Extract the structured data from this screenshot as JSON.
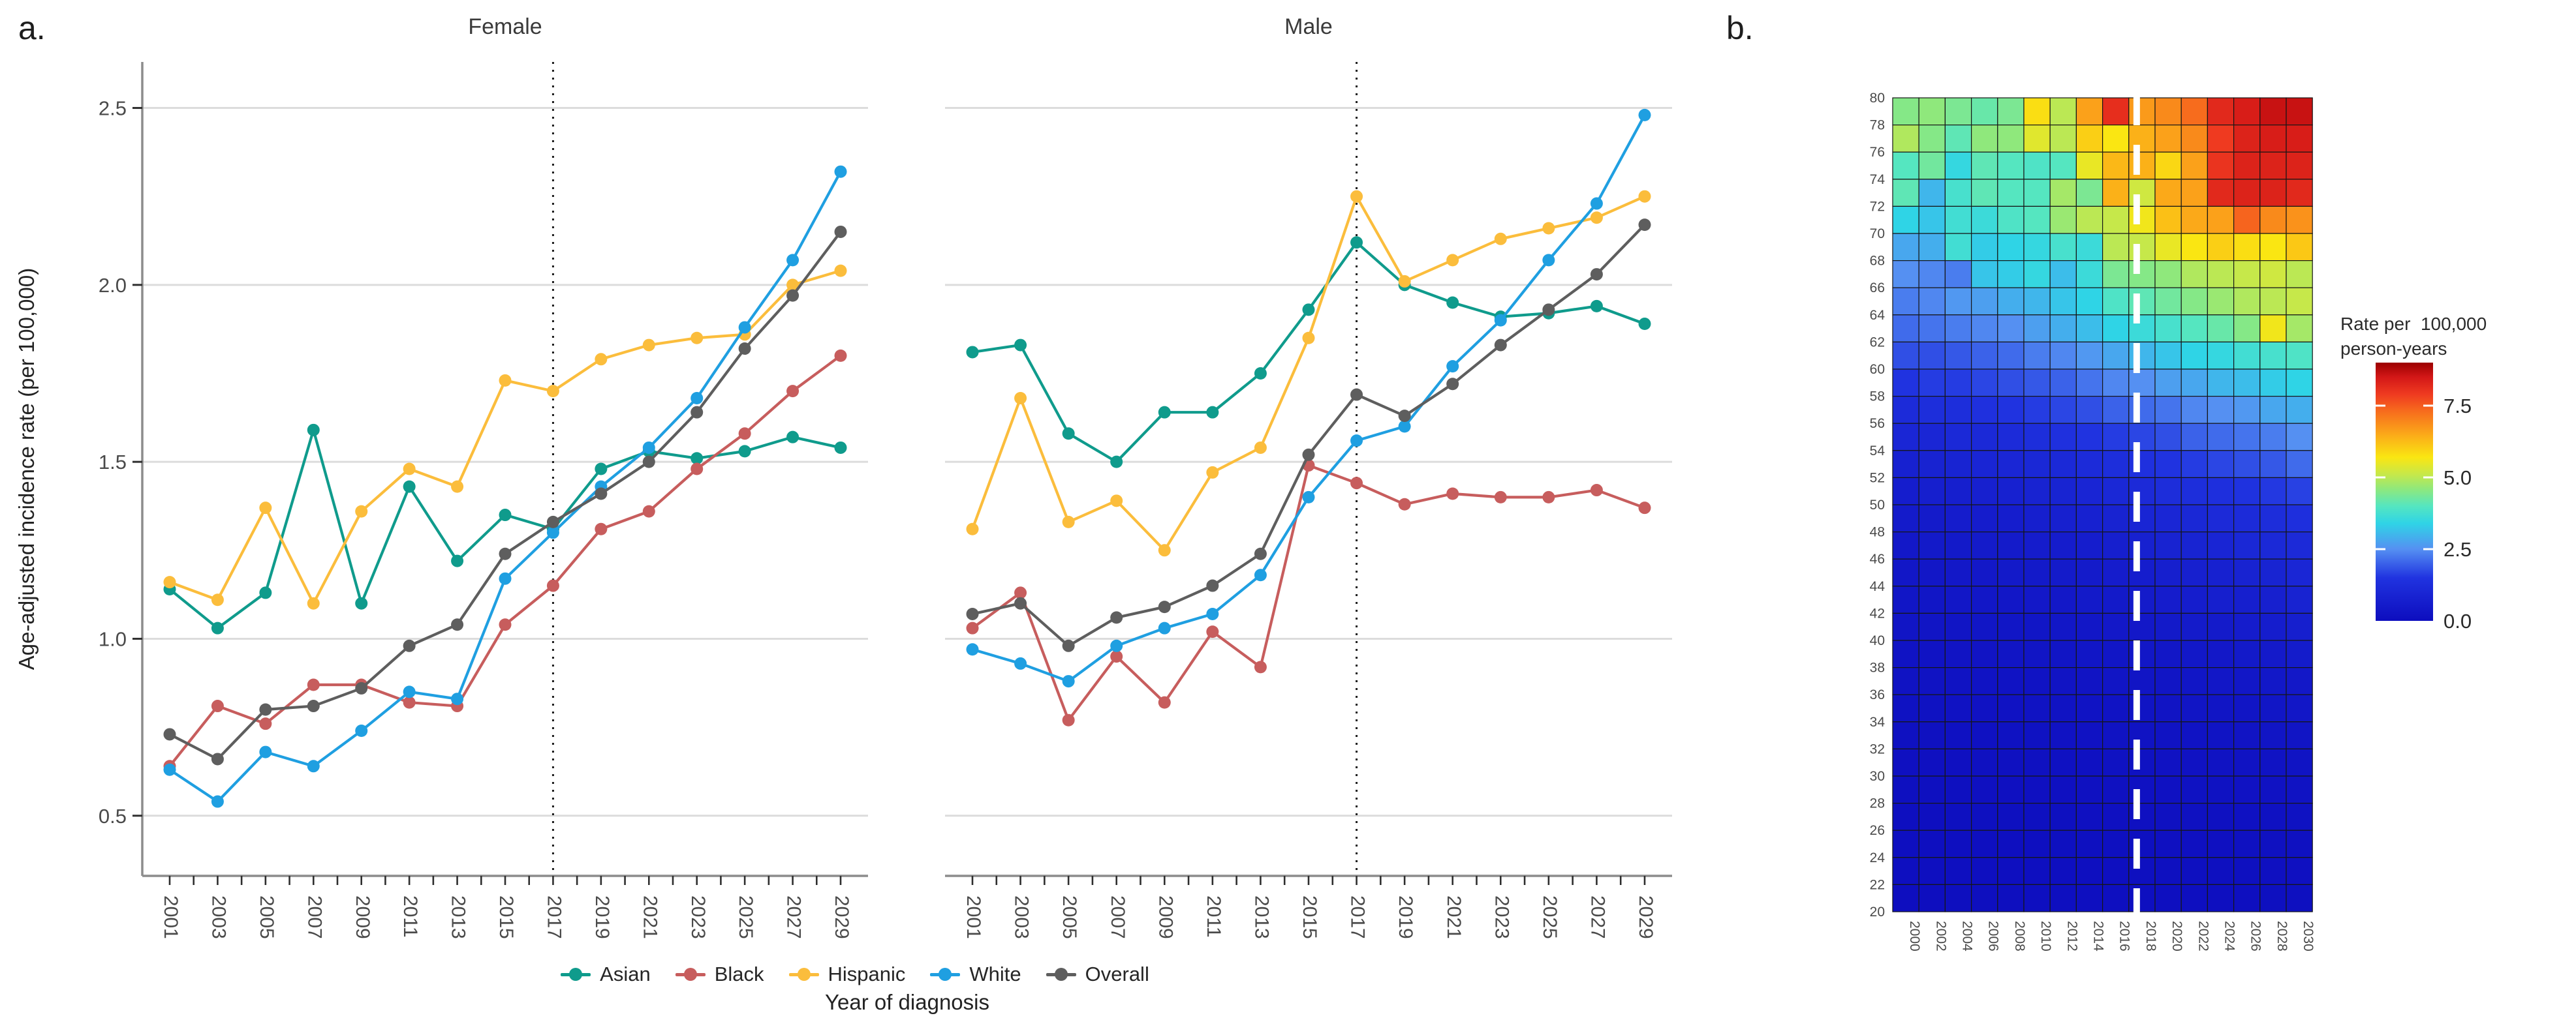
{
  "chart_data": [
    {
      "type": "line",
      "panel_label": "a.",
      "xlabel": "Year of diagnosis",
      "ylabel": "Age-adjusted incidence rate (per 100,000)",
      "facets": [
        {
          "label": "Female"
        },
        {
          "label": "Male"
        }
      ],
      "years": [
        2001,
        2003,
        2005,
        2007,
        2009,
        2011,
        2013,
        2015,
        2017,
        2019,
        2021,
        2023,
        2025,
        2027,
        2029
      ],
      "yticks": [
        "0.5",
        "1.0",
        "1.5",
        "2.0",
        "2.5"
      ],
      "ytick_values": [
        0.5,
        1.0,
        1.5,
        2.0,
        2.5
      ],
      "ylim": [
        0.33,
        2.63
      ],
      "reference_year": 2017,
      "grid": "on",
      "legend_position": "bottom",
      "series": [
        {
          "name": "Asian",
          "color": "#0F9B8C",
          "female": [
            1.14,
            1.03,
            1.13,
            1.59,
            1.1,
            1.43,
            1.22,
            1.35,
            1.31,
            1.48,
            1.53,
            1.51,
            1.53,
            1.57,
            1.54
          ],
          "male": [
            1.81,
            1.83,
            1.58,
            1.5,
            1.64,
            1.64,
            1.75,
            1.93,
            2.12,
            2.0,
            1.95,
            1.91,
            1.92,
            1.94,
            1.89
          ]
        },
        {
          "name": "Black",
          "color": "#C75D5D",
          "female": [
            0.64,
            0.81,
            0.76,
            0.87,
            0.87,
            0.82,
            0.81,
            1.04,
            1.15,
            1.31,
            1.36,
            1.48,
            1.58,
            1.7,
            1.8
          ],
          "male": [
            1.03,
            1.13,
            0.77,
            0.95,
            0.82,
            1.02,
            0.92,
            1.49,
            1.44,
            1.38,
            1.41,
            1.4,
            1.4,
            1.42,
            1.37
          ]
        },
        {
          "name": "Hispanic",
          "color": "#FBBD3C",
          "female": [
            1.16,
            1.11,
            1.37,
            1.1,
            1.36,
            1.48,
            1.43,
            1.73,
            1.7,
            1.79,
            1.83,
            1.85,
            1.86,
            2.0,
            2.04
          ],
          "male": [
            1.31,
            1.68,
            1.33,
            1.39,
            1.25,
            1.47,
            1.54,
            1.85,
            2.25,
            2.01,
            2.07,
            2.13,
            2.16,
            2.19,
            2.25
          ]
        },
        {
          "name": "White",
          "color": "#1F9FE1",
          "female": [
            0.63,
            0.54,
            0.68,
            0.64,
            0.74,
            0.85,
            0.83,
            1.17,
            1.3,
            1.43,
            1.54,
            1.68,
            1.88,
            2.07,
            2.32
          ],
          "male": [
            0.97,
            0.93,
            0.88,
            0.98,
            1.03,
            1.07,
            1.18,
            1.4,
            1.56,
            1.6,
            1.77,
            1.9,
            2.07,
            2.23,
            2.48
          ]
        },
        {
          "name": "Overall",
          "color": "#5E5E5E",
          "female": [
            0.73,
            0.66,
            0.8,
            0.81,
            0.86,
            0.98,
            1.04,
            1.24,
            1.33,
            1.41,
            1.5,
            1.64,
            1.82,
            1.97,
            2.15
          ],
          "male": [
            1.07,
            1.1,
            0.98,
            1.06,
            1.09,
            1.15,
            1.24,
            1.52,
            1.69,
            1.63,
            1.72,
            1.83,
            1.93,
            2.03,
            2.17
          ]
        }
      ],
      "styles": {
        "grid_color": "#DCDCDC",
        "axis_color": "#8C8C8C",
        "tick_color": "#2F2F2F",
        "tick_label_color": "#4A4A4A",
        "refline_color": "#1B1B1B"
      }
    },
    {
      "type": "heatmap",
      "panel_label": "b.",
      "legend_title_line1": "Rate per  100,000",
      "legend_title_line2": "person-years",
      "colorbar_ticks": [
        "7.5",
        "5.0",
        "2.5",
        "0.0"
      ],
      "colorbar_tick_values": [
        7.5,
        5.0,
        2.5,
        0.0
      ],
      "colorbar_range": [
        0,
        9
      ],
      "age_boundary_labels": [
        80,
        78,
        76,
        74,
        72,
        70,
        68,
        66,
        64,
        62,
        60,
        58,
        56,
        54,
        52,
        50,
        48,
        46,
        44,
        42,
        40,
        38,
        36,
        34,
        32,
        30,
        28,
        26,
        24,
        22,
        20
      ],
      "year_labels": [
        2000,
        2002,
        2004,
        2006,
        2008,
        2010,
        2012,
        2014,
        2016,
        2018,
        2020,
        2022,
        2024,
        2026,
        2028,
        2030
      ],
      "projection_year": 2018,
      "colormap": [
        {
          "v": 0.0,
          "c": "#0D0DBE"
        },
        {
          "v": 1.5,
          "c": "#2033E0"
        },
        {
          "v": 2.5,
          "c": "#5590F2"
        },
        {
          "v": 3.4,
          "c": "#2FD4E6"
        },
        {
          "v": 4.0,
          "c": "#55E6C0"
        },
        {
          "v": 4.6,
          "c": "#8FE87C"
        },
        {
          "v": 5.1,
          "c": "#C6E84A"
        },
        {
          "v": 5.7,
          "c": "#FAE612"
        },
        {
          "v": 6.5,
          "c": "#FBA919"
        },
        {
          "v": 7.3,
          "c": "#F76C1D"
        },
        {
          "v": 7.9,
          "c": "#EF3A20"
        },
        {
          "v": 8.5,
          "c": "#D31717"
        },
        {
          "v": 9.0,
          "c": "#9B0000"
        }
      ],
      "values": [
        [
          4.5,
          4.6,
          4.4,
          4.2,
          4.4,
          5.8,
          5.0,
          6.6,
          8.1,
          6.7,
          6.9,
          7.3,
          8.2,
          8.4,
          8.6,
          8.6
        ],
        [
          4.9,
          4.5,
          4.1,
          4.6,
          4.6,
          5.4,
          5.0,
          6.0,
          5.7,
          6.4,
          6.6,
          6.9,
          7.9,
          8.3,
          8.4,
          8.4
        ],
        [
          4.0,
          4.3,
          3.5,
          4.1,
          4.0,
          3.9,
          4.0,
          5.5,
          6.3,
          6.4,
          5.9,
          6.6,
          8.0,
          8.3,
          8.3,
          8.3
        ],
        [
          4.1,
          3.0,
          3.8,
          4.1,
          4.0,
          4.0,
          4.8,
          4.4,
          6.4,
          5.2,
          6.5,
          6.6,
          8.2,
          8.3,
          8.3,
          8.2
        ],
        [
          3.4,
          3.2,
          3.7,
          3.6,
          3.9,
          4.0,
          4.7,
          5.0,
          5.1,
          5.6,
          6.2,
          6.5,
          6.6,
          7.4,
          6.9,
          6.8
        ],
        [
          2.8,
          2.9,
          3.7,
          3.3,
          3.4,
          3.5,
          3.8,
          3.6,
          5.0,
          5.1,
          5.5,
          5.7,
          6.0,
          5.8,
          5.7,
          6.1
        ],
        [
          2.5,
          2.4,
          2.3,
          3.2,
          3.3,
          3.5,
          3.1,
          3.6,
          4.4,
          4.5,
          4.6,
          4.9,
          5.0,
          5.1,
          5.2,
          5.0
        ],
        [
          2.3,
          2.4,
          2.6,
          2.7,
          2.9,
          3.0,
          3.2,
          3.4,
          3.9,
          4.1,
          4.3,
          4.5,
          4.7,
          4.9,
          5.0,
          5.1
        ],
        [
          2.1,
          2.2,
          2.3,
          2.4,
          2.5,
          2.7,
          2.9,
          3.1,
          3.4,
          3.6,
          3.8,
          4.0,
          4.2,
          4.5,
          5.6,
          4.8
        ],
        [
          1.8,
          1.8,
          1.9,
          2.0,
          2.1,
          2.3,
          2.4,
          2.6,
          2.8,
          3.0,
          3.2,
          3.4,
          3.5,
          3.7,
          3.8,
          3.9
        ],
        [
          1.5,
          1.6,
          1.6,
          1.7,
          1.8,
          1.9,
          2.0,
          2.2,
          2.4,
          2.5,
          2.7,
          2.8,
          3.0,
          3.1,
          3.3,
          3.4
        ],
        [
          1.2,
          1.3,
          1.3,
          1.4,
          1.5,
          1.6,
          1.7,
          1.8,
          2.0,
          2.1,
          2.2,
          2.4,
          2.5,
          2.6,
          2.8,
          2.9
        ],
        [
          1.0,
          1.0,
          1.1,
          1.1,
          1.2,
          1.3,
          1.4,
          1.5,
          1.6,
          1.7,
          1.8,
          2.0,
          2.1,
          2.2,
          2.3,
          2.5
        ],
        [
          0.8,
          0.85,
          0.9,
          0.95,
          1.0,
          1.05,
          1.1,
          1.2,
          1.3,
          1.4,
          1.5,
          1.6,
          1.7,
          1.8,
          1.9,
          2.1
        ],
        [
          0.65,
          0.7,
          0.7,
          0.75,
          0.8,
          0.85,
          0.9,
          0.95,
          1.05,
          1.15,
          1.25,
          1.3,
          1.35,
          1.45,
          1.55,
          1.65
        ],
        [
          0.55,
          0.55,
          0.6,
          0.6,
          0.65,
          0.7,
          0.75,
          0.8,
          0.85,
          0.95,
          1.0,
          1.05,
          1.15,
          1.2,
          1.25,
          1.35
        ],
        [
          0.45,
          0.5,
          0.5,
          0.55,
          0.55,
          0.6,
          0.6,
          0.65,
          0.7,
          0.8,
          0.85,
          0.9,
          0.95,
          1.05,
          1.1,
          1.15
        ],
        [
          0.4,
          0.4,
          0.45,
          0.45,
          0.5,
          0.5,
          0.55,
          0.55,
          0.6,
          0.65,
          0.7,
          0.75,
          0.8,
          0.85,
          0.9,
          1.0
        ],
        [
          0.35,
          0.35,
          0.4,
          0.4,
          0.4,
          0.45,
          0.45,
          0.5,
          0.5,
          0.55,
          0.6,
          0.65,
          0.7,
          0.7,
          0.75,
          0.85
        ],
        [
          0.3,
          0.3,
          0.3,
          0.35,
          0.35,
          0.35,
          0.4,
          0.4,
          0.45,
          0.45,
          0.5,
          0.55,
          0.55,
          0.6,
          0.65,
          0.7
        ],
        [
          0.25,
          0.25,
          0.28,
          0.28,
          0.3,
          0.3,
          0.32,
          0.35,
          0.35,
          0.38,
          0.4,
          0.42,
          0.45,
          0.5,
          0.52,
          0.58
        ],
        [
          0.22,
          0.22,
          0.22,
          0.25,
          0.25,
          0.25,
          0.28,
          0.28,
          0.3,
          0.3,
          0.33,
          0.35,
          0.38,
          0.4,
          0.42,
          0.45
        ],
        [
          0.18,
          0.18,
          0.2,
          0.2,
          0.2,
          0.22,
          0.22,
          0.25,
          0.25,
          0.27,
          0.28,
          0.3,
          0.3,
          0.33,
          0.35,
          0.38
        ],
        [
          0.15,
          0.15,
          0.16,
          0.16,
          0.18,
          0.18,
          0.2,
          0.2,
          0.22,
          0.22,
          0.24,
          0.25,
          0.26,
          0.28,
          0.3,
          0.32
        ],
        [
          0.13,
          0.13,
          0.13,
          0.14,
          0.15,
          0.15,
          0.16,
          0.17,
          0.18,
          0.19,
          0.2,
          0.21,
          0.22,
          0.24,
          0.25,
          0.27
        ],
        [
          0.11,
          0.11,
          0.11,
          0.12,
          0.12,
          0.13,
          0.13,
          0.14,
          0.15,
          0.16,
          0.17,
          0.18,
          0.19,
          0.2,
          0.21,
          0.22
        ],
        [
          0.09,
          0.09,
          0.1,
          0.1,
          0.1,
          0.11,
          0.11,
          0.12,
          0.12,
          0.13,
          0.14,
          0.15,
          0.15,
          0.16,
          0.17,
          0.18
        ],
        [
          0.08,
          0.08,
          0.08,
          0.09,
          0.09,
          0.09,
          0.1,
          0.1,
          0.11,
          0.11,
          0.12,
          0.12,
          0.13,
          0.14,
          0.14,
          0.15
        ],
        [
          0.07,
          0.07,
          0.07,
          0.07,
          0.08,
          0.08,
          0.08,
          0.09,
          0.09,
          0.1,
          0.1,
          0.1,
          0.11,
          0.11,
          0.12,
          0.12
        ],
        [
          0.05,
          0.05,
          0.06,
          0.06,
          0.06,
          0.07,
          0.07,
          0.07,
          0.08,
          0.08,
          0.08,
          0.09,
          0.09,
          0.09,
          0.1,
          0.1
        ]
      ],
      "styles": {
        "cell_border": "#161616",
        "label_color": "#4A4A4A",
        "dash_color": "#FFFFFF"
      }
    }
  ]
}
